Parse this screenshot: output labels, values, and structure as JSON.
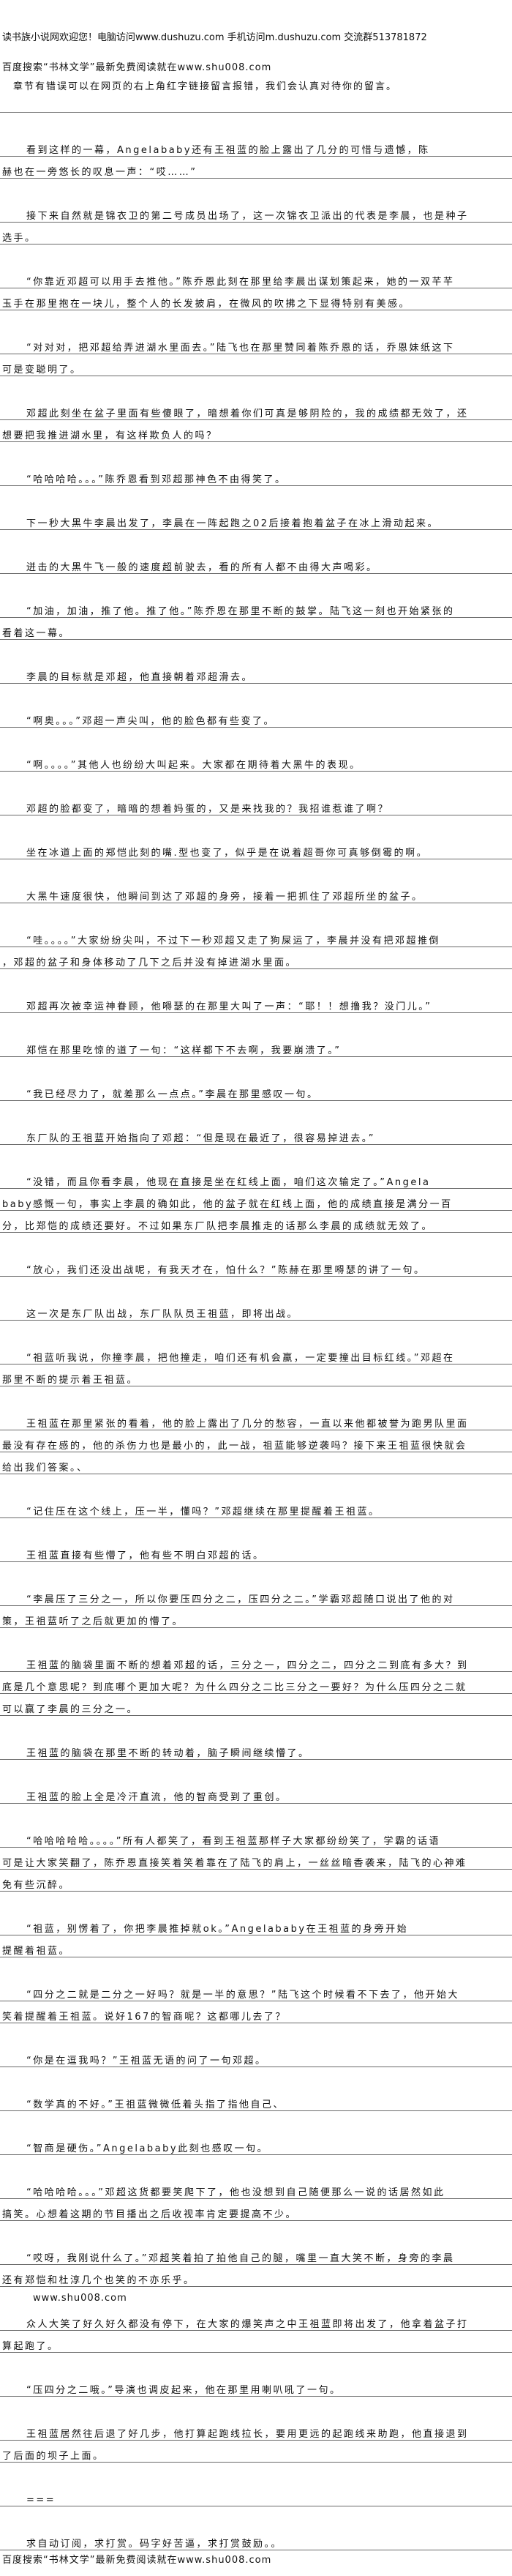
{
  "header": {
    "welcome": "读书族小说网欢迎您！电脑访问www.dushuzu.com 手机访问m.dushuzu.com 交流群513781872",
    "search_promo": "百度搜索“书林文学”最新免费阅读就在www.shu008.com",
    "error_notice": "章节有错误可以在网页的右上角红字链接留言报错，我们会认真对待你的留言。"
  },
  "content": [
    {
      "lines": [
        "看到这样的一幕，Angelababy还有王祖蓝的脸上露出了几分的可惜与遗憾，陈",
        "赫也在一旁悠长的叹息一声：“哎……”"
      ]
    },
    {
      "lines": [
        "接下来自然就是锦衣卫的第二号成员出场了，这一次锦衣卫派出的代表是李晨，也是种子",
        "选手。"
      ]
    },
    {
      "lines": [
        "“你靠近邓超可以用手去推他。”陈乔恩此刻在那里给李晨出谋划策起来，她的一双芊芊",
        "玉手在那里抱在一块儿，整个人的长发披肩，在微风的吹拂之下显得特别有美感。"
      ]
    },
    {
      "lines": [
        "“对对对，把邓超给弄进湖水里面去。”陆飞也在那里赞同着陈乔恩的话，乔恩妹纸这下",
        "可是变聪明了。"
      ]
    },
    {
      "lines": [
        "邓超此刻坐在盆子里面有些傻眼了，暗想着你们可真是够阴险的，我的成绩都无效了，还",
        "想要把我推进湖水里，有这样欺负人的吗？"
      ]
    },
    {
      "lines": [
        "“哈哈哈哈。。。”陈乔恩看到邓超那神色不由得笑了。"
      ]
    },
    {
      "lines": [
        "下一秒大黑牛李晨出发了，李晨在一阵起跑之02后接着抱着盆子在冰上滑动起来。"
      ]
    },
    {
      "lines": [
        "迸击的大黑牛飞一般的速度超前驶去，看的所有人都不由得大声喝彩。"
      ]
    },
    {
      "lines": [
        "“加油，加油，推了他。推了他。”陈乔恩在那里不断的鼓掌。陆飞这一刻也开始紧张的",
        "看着这一幕。"
      ]
    },
    {
      "lines": [
        "李晨的目标就是邓超，他直接朝着邓超滑去。"
      ]
    },
    {
      "lines": [
        "“啊奥。。。”邓超一声尖叫，他的脸色都有些变了。"
      ]
    },
    {
      "lines": [
        "“啊。。。。”其他人也纷纷大叫起来。大家都在期待着大黑牛的表现。"
      ]
    },
    {
      "lines": [
        "邓超的脸都变了，暗暗的想着妈蛋的，又是来找我的？我招谁惹谁了啊？"
      ]
    },
    {
      "lines": [
        "坐在冰道上面的郑恺此刻的嘴.型也变了，似乎是在说着超哥你可真够倒霉的啊。"
      ]
    },
    {
      "lines": [
        "大黑牛速度很快，他瞬间到达了邓超的身旁，接着一把抓住了邓超所坐的盆子。"
      ]
    },
    {
      "lines": [
        "“哇。。。。”大家纷纷尖叫，不过下一秒邓超又走了狗屎运了，李晨并没有把邓超推倒",
        "，邓超的盆子和身体移动了几下之后并没有掉进湖水里面。"
      ]
    },
    {
      "lines": [
        "邓超再次被幸运神眷顾，他嘚瑟的在那里大叫了一声：“耶！！想撸我？没门儿。”"
      ]
    },
    {
      "lines": [
        "郑恺在那里吃惊的道了一句：“这样都下不去啊，我要崩溃了。”"
      ]
    },
    {
      "lines": [
        "“我已经尽力了，就差那么一点点。”李晨在那里感叹一句。"
      ]
    },
    {
      "lines": [
        "东厂队的王祖蓝开始指向了邓超：“但是现在最近了，很容易掉进去。”"
      ]
    },
    {
      "lines": [
        "“没错，而且你看李晨，他现在直接是坐在红线上面，咱们这次输定了。”Angela",
        "baby感慨一句，事实上李晨的确如此，他的盆子就在红线上面，他的成绩直接是满分一百",
        "分，比郑恺的成绩还要好。不过如果东厂队把李晨推走的话那么李晨的成绩就无效了。"
      ]
    },
    {
      "lines": [
        "“放心，我们还没出战呢，有我天才在，怕什么？”陈赫在那里嘚瑟的讲了一句。"
      ]
    },
    {
      "lines": [
        "这一次是东厂队出战，东厂队队员王祖蓝，即将出战。"
      ]
    },
    {
      "lines": [
        "“祖蓝听我说，你撞李晨，把他撞走，咱们还有机会赢，一定要撞出目标红线。”邓超在",
        "那里不断的提示着王祖蓝。"
      ]
    },
    {
      "lines": [
        "王祖蓝在那里紧张的看着，他的脸上露出了几分的愁容，一直以来他都被誉为跑男队里面",
        "最没有存在感的，他的杀伤力也是最小的，此一战，祖蓝能够逆袭吗？接下来王祖蓝很快就会",
        "给出我们答案。、"
      ]
    },
    {
      "lines": [
        "“记住压在这个线上，压一半，懂吗？”邓超继续在那里提醒着王祖蓝。"
      ]
    },
    {
      "lines": [
        "王祖蓝直接有些懵了，他有些不明白邓超的话。"
      ]
    },
    {
      "lines": [
        "“李晨压了三分之一，所以你要压四分之二，压四分之二。”学霸邓超随口说出了他的对",
        "策，王祖蓝听了之后就更加的懵了。"
      ]
    },
    {
      "lines": [
        "王祖蓝的脑袋里面不断的想着邓超的话，三分之一，四分之二，四分之二到底有多大？到",
        "底是几个意思呢？到底哪个更加大呢？为什么四分之二比三分之一要好？为什么压四分之二就",
        "可以赢了李晨的三分之一。"
      ]
    },
    {
      "lines": [
        "王祖蓝的脑袋在那里不断的转动着，脑子瞬间继续懵了。"
      ]
    },
    {
      "lines": [
        "王祖蓝的脸上全是冷汗直流，他的智商受到了重创。"
      ]
    },
    {
      "lines": [
        "“哈哈哈哈哈。。。。”所有人都笑了，看到王祖蓝那样子大家都纷纷笑了，学霸的话语",
        "可是让大家笑翻了，陈乔恩直接笑着笑着靠在了陆飞的肩上，一丝丝暗香袭来，陆飞的心神难",
        "免有些沉醉。"
      ]
    },
    {
      "lines": [
        "“祖蓝，别愣着了，你把李晨推掉就ok。”Angelababy在王祖蓝的身旁开始",
        "提醒着祖蓝。"
      ]
    },
    {
      "lines": [
        "“四分之二就是二分之一好吗？就是一半的意思？”陆飞这个时候看不下去了，他开始大",
        "笑着提醒着王祖蓝。说好167的智商呢？这都哪儿去了？"
      ]
    },
    {
      "lines": [
        "“你是在逗我吗？”王祖蓝无语的问了一句邓超。"
      ]
    },
    {
      "lines": [
        "“数学真的不好。”王祖蓝微微低着头指了指他自己、"
      ]
    },
    {
      "lines": [
        "“智商是硬伤。”Angelababy此刻也感叹一句。"
      ]
    },
    {
      "lines": [
        "“哈哈哈哈。。。”邓超这货都要笑爬下了，他也没想到自己随便那么一说的话居然如此",
        "搞笑。心想着这期的节目播出之后收视率肯定要提高不少。"
      ]
    },
    {
      "lines": [
        "“哎呀，我刚说什么了。”邓超笑着拍了拍他自己的腿，嘴里一直大笑不断，身旁的李晨",
        "还有郑恺和杜淳几个也笑的不亦乐乎。"
      ]
    },
    {
      "plain": "www.shu008.com"
    },
    {
      "lines": [
        "众人大笑了好久好久都没有停下，在大家的爆笑声之中王祖蓝即将出发了，他拿着盆子打",
        "算起跑了。"
      ]
    },
    {
      "lines": [
        "“压四分之二哦。”导演也调皮起来，他在那里用喇叭吼了一句。"
      ]
    },
    {
      "lines": [
        "王祖蓝居然往后退了好几步，他打算起跑线拉长，要用更远的起跑线来助跑，他直接退到",
        "了后面的坝子上面。"
      ]
    },
    {
      "lines": [
        "==="
      ]
    },
    {
      "lines": [
        "求自动订阅，求打赏。码字好苦逼，求打赏鼓励。。"
      ]
    }
  ],
  "footer": {
    "search_promo": "百度搜索“书林文学”最新免费阅读就在www.shu008.com"
  }
}
